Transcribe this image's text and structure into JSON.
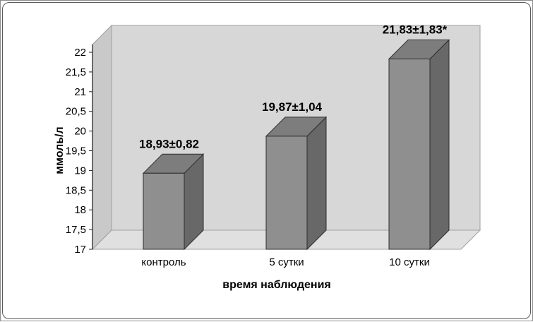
{
  "window": {
    "border_color": "#8a8a8a"
  },
  "chart_data": {
    "type": "bar",
    "projection": "3d",
    "title": "",
    "categories": [
      "контроль",
      "5 сутки",
      "10 сутки"
    ],
    "values": [
      18.93,
      19.87,
      21.83
    ],
    "errors": [
      0.82,
      1.04,
      1.83
    ],
    "data_labels": [
      "18,93±0,82",
      "19,87±1,04",
      "21,83±1,83*"
    ],
    "xlabel": "время наблюдения",
    "ylabel": "ммоль/л",
    "ylim": [
      17,
      22
    ],
    "ytick_step": 0.5,
    "ytick_labels": [
      "17",
      "17,5",
      "18",
      "18,5",
      "19",
      "19,5",
      "20",
      "20,5",
      "21",
      "21,5",
      "22"
    ],
    "grid": false,
    "legend": "none",
    "colors": {
      "bar_front": "#8f8f8f",
      "bar_top": "#7d7d7d",
      "bar_side": "#686868",
      "bar_outline": "#2e2e2e",
      "wall": "#d7d7d7",
      "side_wall": "#c9c9c9",
      "floor": "#e0e0e0",
      "edge": "#a0a0a0",
      "axis": "#262626",
      "text": "#000000"
    }
  }
}
